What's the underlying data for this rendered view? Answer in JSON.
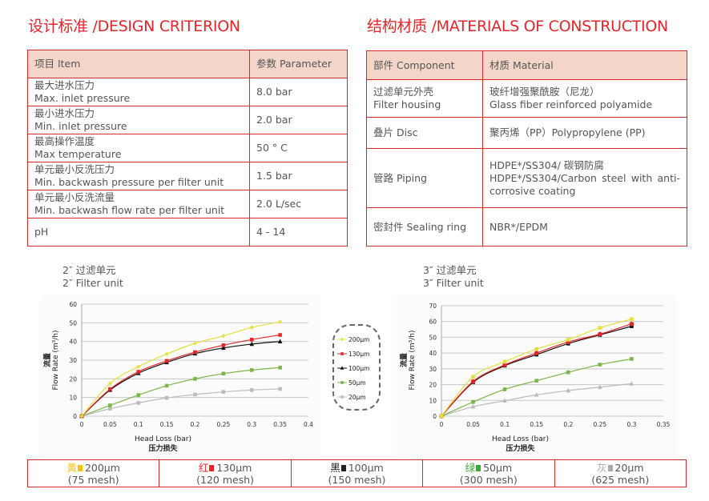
{
  "design": {
    "title": "设计标准 /DESIGN CRITERION",
    "header": [
      "项目 Item",
      "参数 Parameter"
    ],
    "rows": [
      {
        "cn": "最大进水压力",
        "en": "Max. inlet pressure",
        "value": "8.0 bar"
      },
      {
        "cn": "最小进水压力",
        "en": "Min. inlet pressure",
        "value": "2.0 bar"
      },
      {
        "cn": "最高操作温度",
        "en": "Max temperature",
        "value": "50 ° C"
      },
      {
        "cn": "单元最小反洗压力",
        "en": "Min. backwash pressure per filter unit",
        "value": "1.5 bar"
      },
      {
        "cn": "单元最小反洗流量",
        "en": "Min. backwash flow rate per filter unit",
        "value": "2.0 L/sec"
      },
      {
        "cn": "pH",
        "en": "",
        "value": "4 - 14"
      }
    ]
  },
  "materials": {
    "title": "结构材质 /MATERIALS OF CONSTRUCTION",
    "header": [
      "部件 Component",
      "材质 Material"
    ],
    "rows": [
      {
        "component": [
          "过滤单元外壳",
          "Filter housing"
        ],
        "material": [
          "玻纤增强聚酰胺（尼龙）",
          "Glass fiber reinforced polyamide"
        ]
      },
      {
        "component": [
          "叠片 Disc"
        ],
        "material": [
          "聚丙烯（PP）Polypropylene (PP)"
        ]
      },
      {
        "component": [
          "管路 Piping"
        ],
        "material": [
          "HDPE*/SS304/ 碳钢防腐",
          "HDPE*/SS304/Carbon steel with anti-corrosive coating"
        ]
      },
      {
        "component": [
          "密封件 Sealing ring"
        ],
        "material": [
          "NBR*/EPDM"
        ]
      }
    ]
  },
  "colors": {
    "accent": "#e3262b",
    "200": "#e8e03a",
    "130": "#e8262a",
    "100": "#111111",
    "50": "#7ab648",
    "20": "#bbbbbb",
    "header_bg": "#f4d6c9"
  },
  "chart_data": [
    {
      "type": "line",
      "title_cn": "2″ 过滤单元",
      "title_en": "2″ Filter unit",
      "xlabel": "Head Loss (bar)",
      "xlabel_cn": "压力损失",
      "ylabel": "Flow Rate (m³/h)",
      "ylabel_cn": "流量",
      "xlim": [
        0,
        0.4
      ],
      "ylim": [
        0,
        60
      ],
      "xticks": [
        0,
        0.05,
        0.1,
        0.15,
        0.2,
        0.25,
        0.3,
        0.35,
        0.4
      ],
      "yticks": [
        0,
        10,
        20,
        30,
        40,
        50,
        60
      ],
      "grid": true,
      "x": [
        0,
        0.05,
        0.1,
        0.15,
        0.2,
        0.25,
        0.3,
        0.35
      ],
      "series": [
        {
          "name": "200μm",
          "color": "#e8e03a",
          "marker": "diamond",
          "values": [
            0,
            17.5,
            26.5,
            33.3,
            39,
            43,
            47.5,
            50.5
          ]
        },
        {
          "name": "130μm",
          "color": "#e8262a",
          "marker": "square",
          "values": [
            0,
            14.5,
            23.8,
            29.6,
            34.3,
            38,
            41,
            43.5
          ]
        },
        {
          "name": "100μm",
          "color": "#111111",
          "marker": "triangle",
          "values": [
            0,
            14,
            23,
            28.8,
            33.5,
            36.5,
            38.6,
            40
          ]
        },
        {
          "name": "50μm",
          "color": "#7ab648",
          "marker": "square",
          "values": [
            0,
            5.8,
            11.3,
            16.3,
            20,
            22.8,
            24.7,
            26
          ]
        },
        {
          "name": "20μm",
          "color": "#bbbbbb",
          "marker": "square",
          "values": [
            0,
            4,
            7.1,
            9.8,
            11.6,
            13,
            14,
            14.6
          ]
        }
      ]
    },
    {
      "type": "line",
      "title_cn": "3″ 过滤单元",
      "title_en": "3″ Filter unit",
      "xlabel": "Head Loss (bar)",
      "xlabel_cn": "压力损失",
      "ylabel": "Flow Rate (m³/h)",
      "ylabel_cn": "流量",
      "xlim": [
        0,
        0.35
      ],
      "ylim": [
        0,
        70
      ],
      "xticks": [
        0,
        0.05,
        0.1,
        0.15,
        0.2,
        0.25,
        0.3,
        0.35
      ],
      "yticks": [
        0,
        10,
        20,
        30,
        40,
        50,
        60,
        70
      ],
      "grid": true,
      "x": [
        0,
        0.05,
        0.1,
        0.15,
        0.2,
        0.25,
        0.3
      ],
      "series": [
        {
          "name": "200μm",
          "color": "#e8e03a",
          "marker": "square",
          "values": [
            0,
            25,
            34.5,
            42.5,
            48.5,
            56,
            61.5
          ]
        },
        {
          "name": "130μm",
          "color": "#e8262a",
          "marker": "circle",
          "values": [
            0,
            22,
            32.5,
            40,
            47,
            52,
            58.5
          ]
        },
        {
          "name": "100μm",
          "color": "#111111",
          "marker": "square",
          "values": [
            0,
            21.5,
            32,
            39,
            46,
            51.5,
            57
          ]
        },
        {
          "name": "50μm",
          "color": "#7ab648",
          "marker": "square",
          "values": [
            0,
            9,
            17,
            22.5,
            27.8,
            32.7,
            36.3
          ]
        },
        {
          "name": "20μm",
          "color": "#bbbbbb",
          "marker": "triangle",
          "values": [
            0,
            6,
            9.8,
            13.5,
            16.2,
            18.4,
            20.6
          ]
        }
      ]
    }
  ],
  "legend": [
    "200μm",
    "130μm",
    "100μm",
    "50μm",
    "20μm"
  ],
  "mesh": [
    {
      "cn": "黄",
      "size": "200μm",
      "mesh": "(75 mesh)",
      "color": "#f5c400"
    },
    {
      "cn": "红",
      "size": "130μm",
      "mesh": "(120 mesh)",
      "color": "#e8262a"
    },
    {
      "cn": "黑",
      "size": "100μm",
      "mesh": "(150 mesh)",
      "color": "#222222"
    },
    {
      "cn": "绿",
      "size": "50μm",
      "mesh": "(300 mesh)",
      "color": "#3aaa35"
    },
    {
      "cn": "灰",
      "size": "20μm",
      "mesh": "(625 mesh)",
      "color": "#aaaaaa"
    }
  ]
}
